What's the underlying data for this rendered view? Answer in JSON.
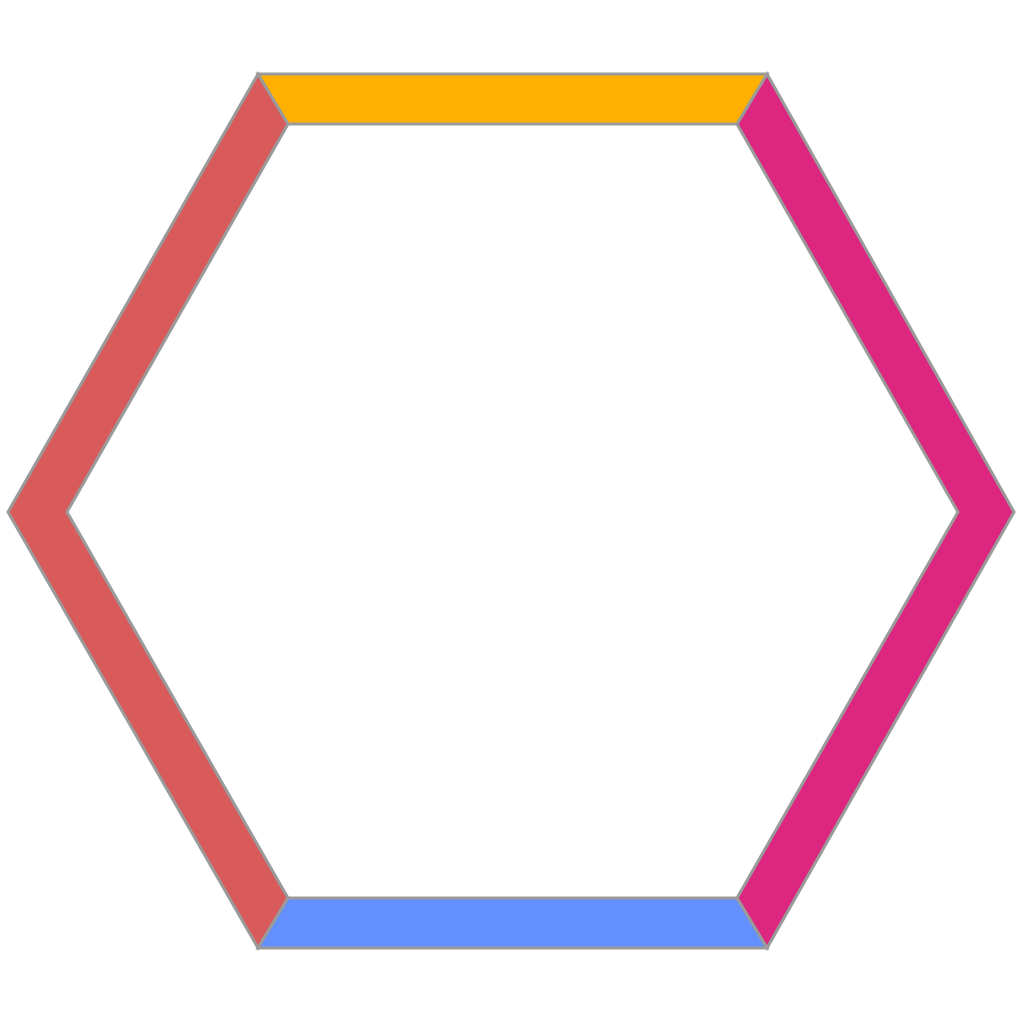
{
  "hexagon": {
    "segments": [
      {
        "name": "top-segment",
        "color": "#FFB000"
      },
      {
        "name": "right-segment",
        "color": "#DC267F"
      },
      {
        "name": "bottom-segment",
        "color": "#648FFF"
      },
      {
        "name": "left-segment",
        "color": "#D85A5A"
      }
    ],
    "edge_color": "#9A9A9A"
  }
}
